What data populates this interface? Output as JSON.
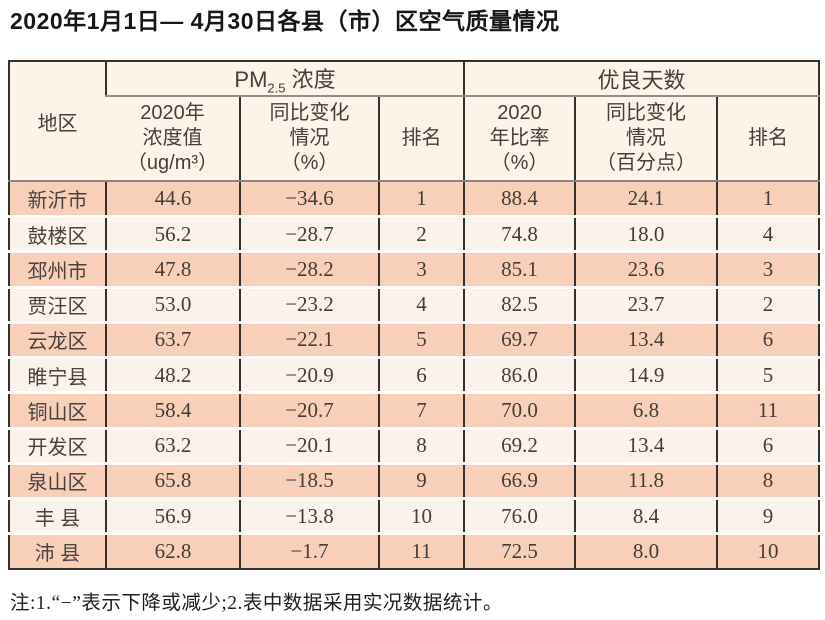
{
  "title": "2020年1月1日— 4月30日各县（市）区空气质量情况",
  "footnote": "注:1.“−”表示下降或减少;2.表中数据采用实况数据统计。",
  "colors": {
    "row_shade": "#f8cfb9",
    "row_light": "#fbf2ec",
    "header_bg": "#fdf3e8",
    "grid_dark": "#37302a",
    "grid_gray": "#938b83"
  },
  "table": {
    "col_region": "地区",
    "group_pm": {
      "prefix": "PM",
      "sub": "2.5",
      "suffix": " 浓度"
    },
    "group_good": "优良天数",
    "col_pm_value": "2020年\n浓度值\n（ug/m³）",
    "col_pm_change": "同比变化\n情况\n（%）",
    "col_rank1": "排名",
    "col_ratio": "2020\n年比率\n（%）",
    "col_ratio_change": "同比变化\n情况\n（百分点）",
    "col_rank2": "排名"
  },
  "rows": [
    {
      "region": "新沂市",
      "pm": "44.6",
      "pm_change": "−34.6",
      "pm_rank": "1",
      "ratio": "88.4",
      "ratio_change": "24.1",
      "rank": "1"
    },
    {
      "region": "鼓楼区",
      "pm": "56.2",
      "pm_change": "−28.7",
      "pm_rank": "2",
      "ratio": "74.8",
      "ratio_change": "18.0",
      "rank": "4"
    },
    {
      "region": "邳州市",
      "pm": "47.8",
      "pm_change": "−28.2",
      "pm_rank": "3",
      "ratio": "85.1",
      "ratio_change": "23.6",
      "rank": "3"
    },
    {
      "region": "贾汪区",
      "pm": "53.0",
      "pm_change": "−23.2",
      "pm_rank": "4",
      "ratio": "82.5",
      "ratio_change": "23.7",
      "rank": "2"
    },
    {
      "region": "云龙区",
      "pm": "63.7",
      "pm_change": "−22.1",
      "pm_rank": "5",
      "ratio": "69.7",
      "ratio_change": "13.4",
      "rank": "6"
    },
    {
      "region": "睢宁县",
      "pm": "48.2",
      "pm_change": "−20.9",
      "pm_rank": "6",
      "ratio": "86.0",
      "ratio_change": "14.9",
      "rank": "5"
    },
    {
      "region": "铜山区",
      "pm": "58.4",
      "pm_change": "−20.7",
      "pm_rank": "7",
      "ratio": "70.0",
      "ratio_change": "6.8",
      "rank": "11"
    },
    {
      "region": "开发区",
      "pm": "63.2",
      "pm_change": "−20.1",
      "pm_rank": "8",
      "ratio": "69.2",
      "ratio_change": "13.4",
      "rank": "6"
    },
    {
      "region": "泉山区",
      "pm": "65.8",
      "pm_change": "−18.5",
      "pm_rank": "9",
      "ratio": "66.9",
      "ratio_change": "11.8",
      "rank": "8"
    },
    {
      "region": "丰 县",
      "pm": "56.9",
      "pm_change": "−13.8",
      "pm_rank": "10",
      "ratio": "76.0",
      "ratio_change": "8.4",
      "rank": "9"
    },
    {
      "region": "沛 县",
      "pm": "62.8",
      "pm_change": "−1.7",
      "pm_rank": "11",
      "ratio": "72.5",
      "ratio_change": "8.0",
      "rank": "10"
    }
  ],
  "chart_data": {
    "type": "table",
    "title": "2020年1月1日— 4月30日各县（市）区空气质量情况",
    "columns": [
      "地区",
      "PM2.5浓度 2020年浓度值（ug/m³）",
      "PM2.5浓度 同比变化情况（%）",
      "PM2.5浓度 排名",
      "优良天数 2020年比率（%）",
      "优良天数 同比变化情况（百分点）",
      "优良天数 排名"
    ],
    "rows": [
      [
        "新沂市",
        44.6,
        -34.6,
        1,
        88.4,
        24.1,
        1
      ],
      [
        "鼓楼区",
        56.2,
        -28.7,
        2,
        74.8,
        18.0,
        4
      ],
      [
        "邳州市",
        47.8,
        -28.2,
        3,
        85.1,
        23.6,
        3
      ],
      [
        "贾汪区",
        53.0,
        -23.2,
        4,
        82.5,
        23.7,
        2
      ],
      [
        "云龙区",
        63.7,
        -22.1,
        5,
        69.7,
        13.4,
        6
      ],
      [
        "睢宁县",
        48.2,
        -20.9,
        6,
        86.0,
        14.9,
        5
      ],
      [
        "铜山区",
        58.4,
        -20.7,
        7,
        70.0,
        6.8,
        11
      ],
      [
        "开发区",
        63.2,
        -20.1,
        8,
        69.2,
        13.4,
        6
      ],
      [
        "泉山区",
        65.8,
        -18.5,
        9,
        66.9,
        11.8,
        8
      ],
      [
        "丰县",
        56.9,
        -13.8,
        10,
        76.0,
        8.4,
        9
      ],
      [
        "沛县",
        62.8,
        -1.7,
        11,
        72.5,
        8.0,
        10
      ]
    ],
    "note": "注:1.“−”表示下降或减少;2.表中数据采用实况数据统计。"
  }
}
